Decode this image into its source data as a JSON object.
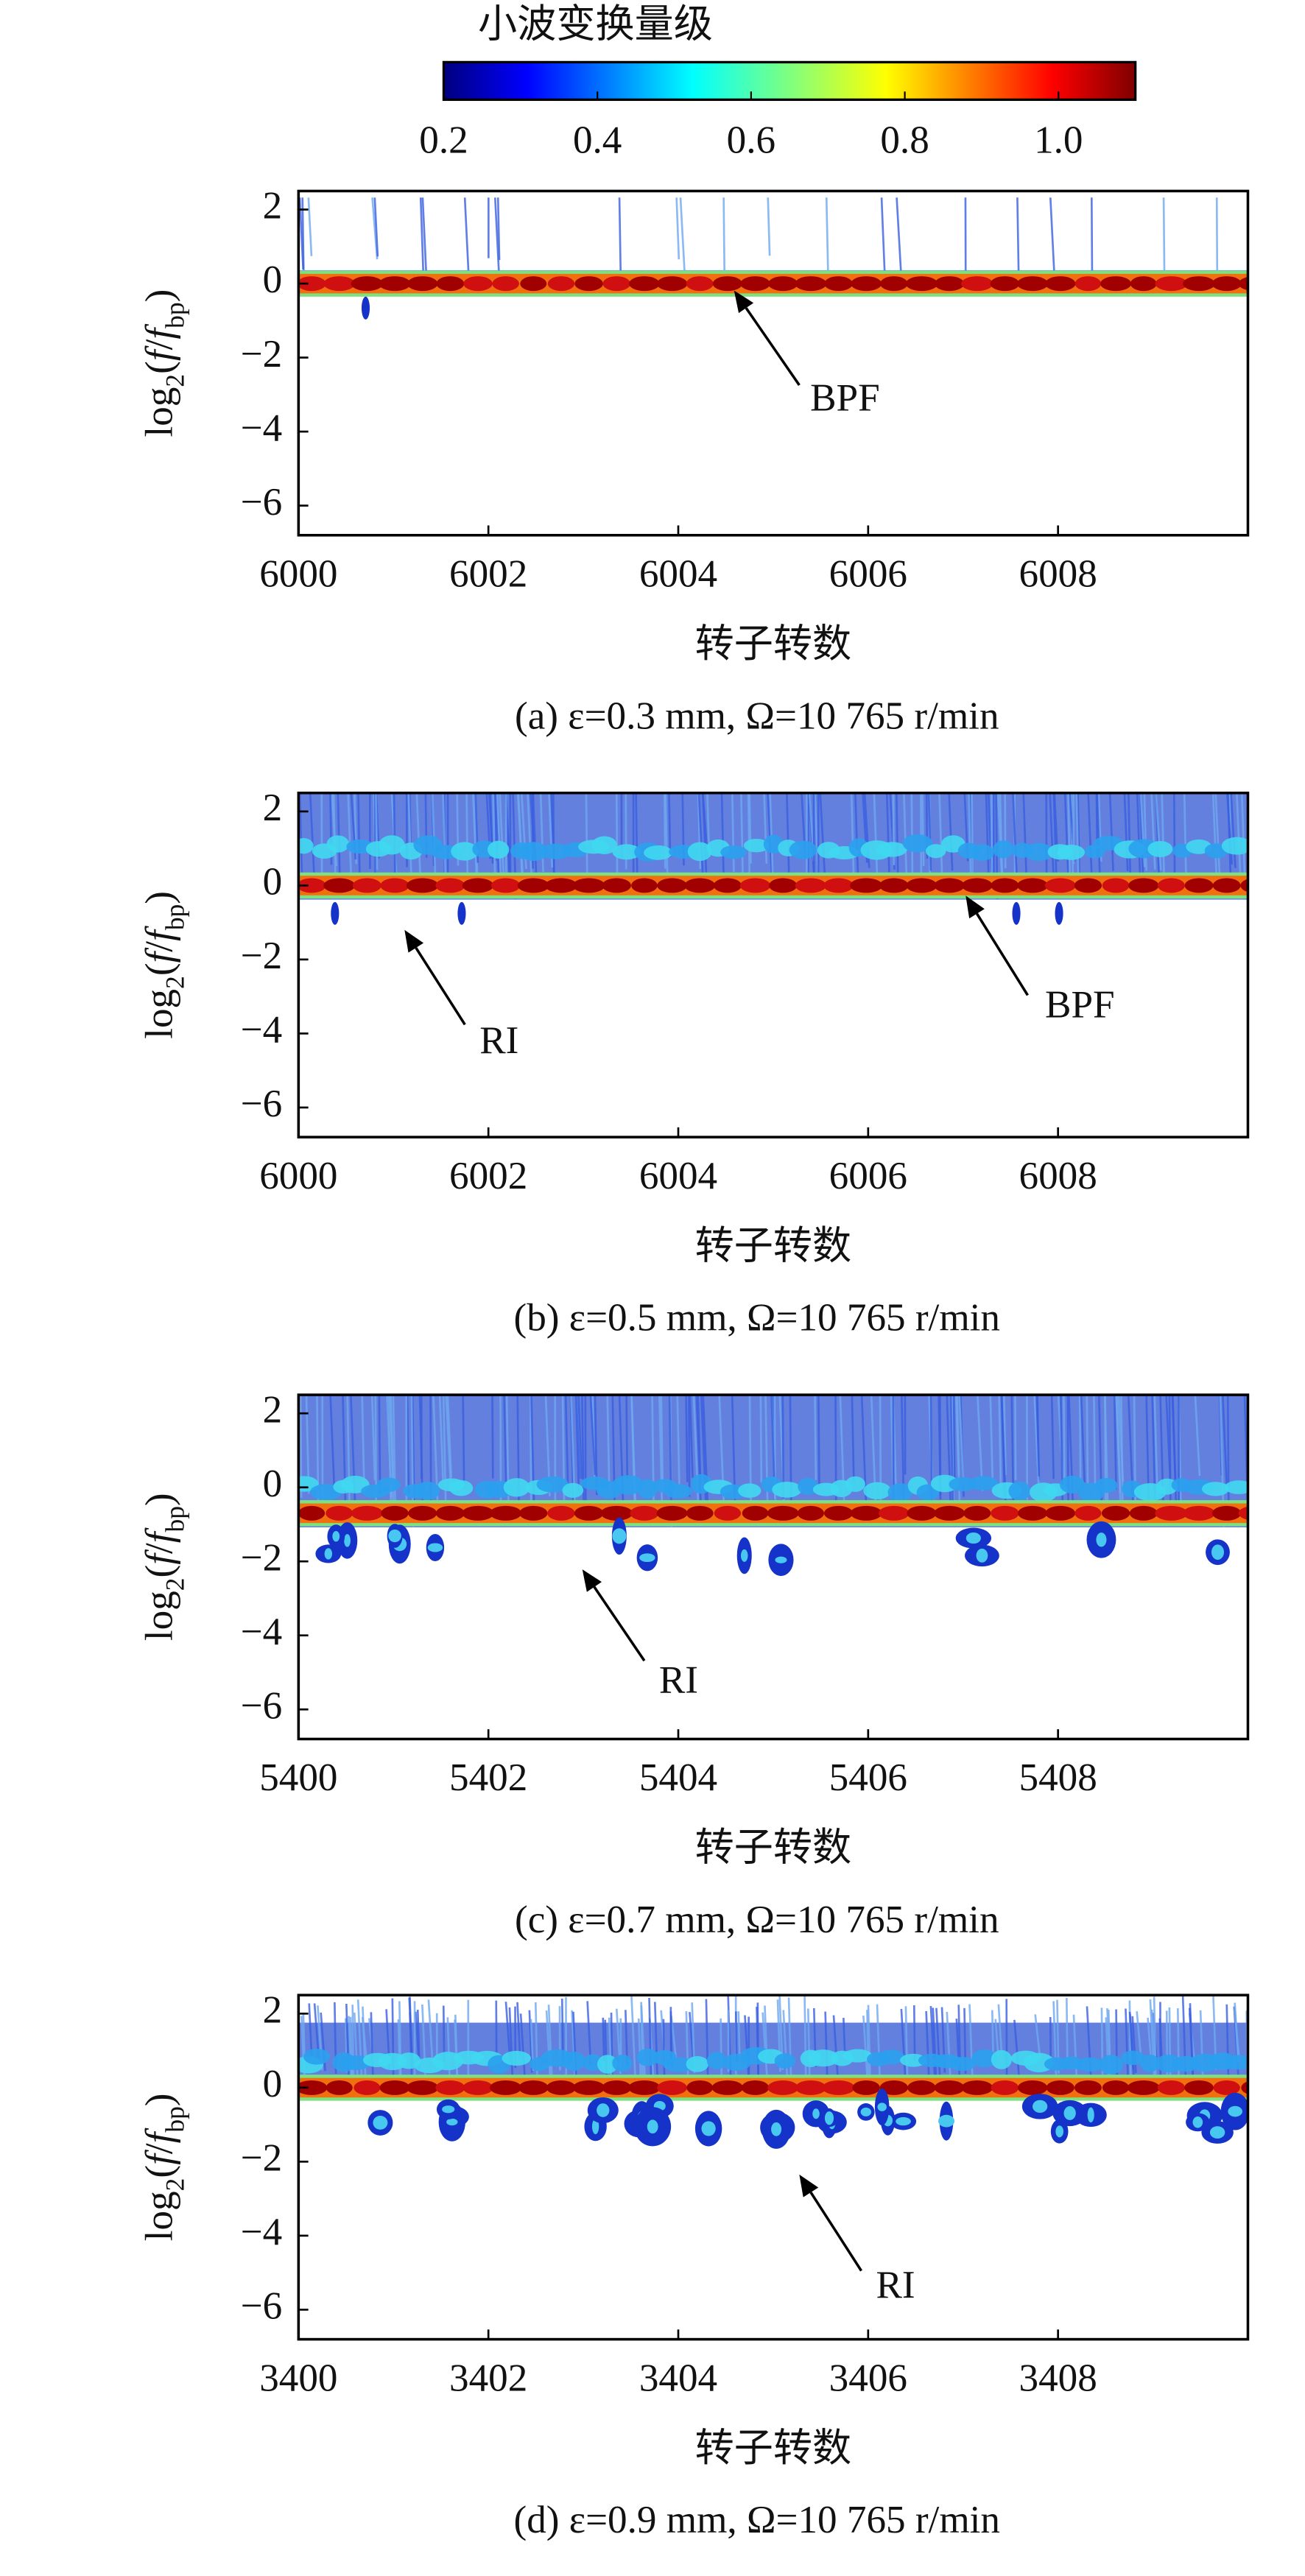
{
  "colorbar": {
    "label": "小波变换量级",
    "clim": [
      0.2,
      1.1
    ],
    "colormap": "jet",
    "ticks": [
      0.2,
      0.4,
      0.6,
      0.8,
      {
        "value": 1,
        "label": "1.0"
      }
    ]
  },
  "chart_data": [
    {
      "type": "heatmap",
      "xlim": [
        6000,
        6010
      ],
      "xticks": [
        6000,
        6002,
        6004,
        6006,
        6008
      ],
      "ylim": [
        -6.8,
        2.5
      ],
      "yticks": [
        2,
        0,
        {
          "value": -2,
          "label": "−2"
        },
        {
          "value": -4,
          "label": "−4"
        },
        {
          "value": -6,
          "label": "−6"
        }
      ],
      "xlabel": "转子转数",
      "ylabel": [
        "log",
        "2",
        "(",
        "f",
        "/",
        "f",
        "bp",
        ")"
      ],
      "caption": "(a) ε=0.3 mm, Ω=10 765 r/min",
      "annotations": [
        {
          "text": "BPF"
        }
      ]
    },
    {
      "type": "heatmap",
      "xlim": [
        6000,
        6010
      ],
      "xticks": [
        6000,
        6002,
        6004,
        6006,
        6008
      ],
      "ylim": [
        -6.8,
        2.5
      ],
      "yticks": [
        2,
        0,
        {
          "value": -2,
          "label": "−2"
        },
        {
          "value": -4,
          "label": "−4"
        },
        {
          "value": -6,
          "label": "−6"
        }
      ],
      "xlabel": "转子转数",
      "ylabel": [
        "log",
        "2",
        "(",
        "f",
        "/",
        "f",
        "bp",
        ")"
      ],
      "caption": "(b) ε=0.5 mm, Ω=10 765 r/min",
      "annotations": [
        {
          "text": "RI"
        },
        {
          "text": "BPF"
        }
      ]
    },
    {
      "type": "heatmap",
      "xlim": [
        5400,
        5410
      ],
      "xticks": [
        5400,
        5402,
        5404,
        5406,
        5408
      ],
      "ylim": [
        -6.8,
        2.5
      ],
      "yticks": [
        2,
        0,
        {
          "value": -2,
          "label": "−2"
        },
        {
          "value": -4,
          "label": "−4"
        },
        {
          "value": -6,
          "label": "−6"
        }
      ],
      "xlabel": "转子转数",
      "ylabel": [
        "log",
        "2",
        "(",
        "f",
        "/",
        "f",
        "bp",
        ")"
      ],
      "caption": "(c) ε=0.7 mm, Ω=10 765 r/min",
      "annotations": [
        {
          "text": "RI"
        }
      ]
    },
    {
      "type": "heatmap",
      "xlim": [
        3400,
        3410
      ],
      "xticks": [
        3400,
        3402,
        3404,
        3406,
        3408
      ],
      "ylim": [
        -6.8,
        2.5
      ],
      "yticks": [
        2,
        0,
        {
          "value": -2,
          "label": "−2"
        },
        {
          "value": -4,
          "label": "−4"
        },
        {
          "value": -6,
          "label": "−6"
        }
      ],
      "xlabel": "转子转数",
      "ylabel": [
        "log",
        "2",
        "(",
        "f",
        "/",
        "f",
        "bp",
        ")"
      ],
      "caption": "(d) ε=0.9 mm, Ω=10 765 r/min",
      "annotations": [
        {
          "text": "RI"
        }
      ]
    }
  ]
}
